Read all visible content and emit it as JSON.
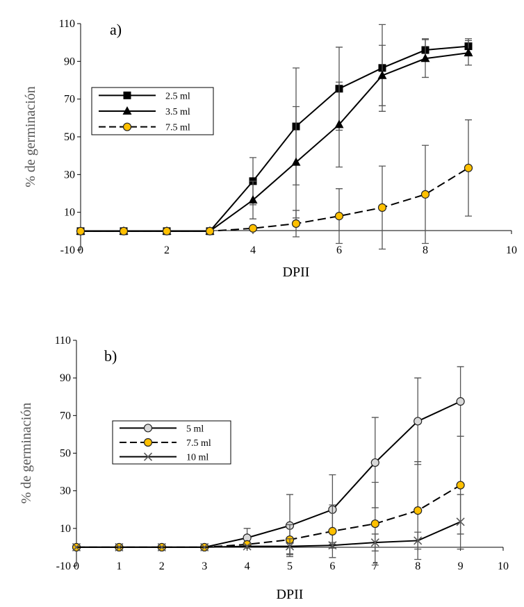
{
  "chart_data": [
    {
      "type": "line",
      "panel_label": "a)",
      "xlabel": "DPII",
      "ylabel": "% de germinación",
      "xlim": [
        0,
        10
      ],
      "ylim": [
        -10,
        110
      ],
      "xticks": [
        "0",
        "2",
        "4",
        "6",
        "8",
        "10"
      ],
      "yticks": [
        "-10",
        "10",
        "30",
        "50",
        "70",
        "90",
        "110"
      ],
      "legend_position": "left-middle",
      "series": [
        {
          "name": "2.5 ml",
          "marker": "square",
          "marker_color": "#000000",
          "line_style": "solid",
          "x": [
            0,
            1,
            2,
            3,
            4,
            5,
            6,
            7,
            8,
            9
          ],
          "y": [
            0,
            0,
            0,
            0,
            26.5,
            55.5,
            75.5,
            86.5,
            96,
            98
          ],
          "err": [
            0,
            0,
            0,
            0,
            12.5,
            31,
            22,
            23,
            6,
            4
          ]
        },
        {
          "name": "3.5 ml",
          "marker": "triangle",
          "marker_color": "#000000",
          "line_style": "solid",
          "x": [
            0,
            1,
            2,
            3,
            4,
            5,
            6,
            7,
            8,
            9
          ],
          "y": [
            0,
            0,
            0,
            0,
            16.5,
            36.5,
            56.5,
            82.5,
            91.5,
            94.5
          ],
          "err": [
            0,
            0,
            0,
            0,
            10,
            29.5,
            22.5,
            16,
            10,
            6.5
          ]
        },
        {
          "name": "7.5 ml",
          "marker": "circle",
          "marker_color": "#ffc000",
          "line_style": "dashed",
          "x": [
            0,
            1,
            2,
            3,
            4,
            5,
            6,
            7,
            8,
            9
          ],
          "y": [
            0,
            0,
            0,
            0,
            1.5,
            4,
            8,
            12.5,
            19.5,
            33.5
          ],
          "err": [
            0,
            0,
            0,
            0,
            1,
            7,
            14.5,
            22,
            26,
            25.5
          ]
        }
      ]
    },
    {
      "type": "line",
      "panel_label": "b)",
      "xlabel": "DPII",
      "ylabel": "% de germinación",
      "xlim": [
        0,
        10
      ],
      "ylim": [
        -10,
        110
      ],
      "xticks": [
        "0",
        "1",
        "2",
        "3",
        "4",
        "5",
        "6",
        "7",
        "8",
        "9",
        "10"
      ],
      "yticks": [
        "-10",
        "10",
        "30",
        "50",
        "70",
        "90",
        "110"
      ],
      "legend_position": "left-middle",
      "series": [
        {
          "name": "5 ml",
          "marker": "circle",
          "marker_color": "#d9d9d9",
          "line_style": "solid",
          "x": [
            0,
            1,
            2,
            3,
            4,
            5,
            6,
            7,
            8,
            9
          ],
          "y": [
            0,
            0,
            0,
            0,
            5,
            11.5,
            20,
            45,
            67,
            77.5
          ],
          "err": [
            0,
            0,
            0,
            0,
            5,
            16.5,
            18.5,
            24,
            23,
            18.5
          ]
        },
        {
          "name": "7.5 ml",
          "marker": "circle",
          "marker_color": "#ffc000",
          "line_style": "dashed",
          "x": [
            0,
            1,
            2,
            3,
            4,
            5,
            6,
            7,
            8,
            9
          ],
          "y": [
            0,
            0,
            0,
            0,
            1.5,
            4,
            8.5,
            12.5,
            19.5,
            33
          ],
          "err": [
            0,
            0,
            0,
            0,
            1,
            8,
            14,
            22,
            26,
            26
          ]
        },
        {
          "name": "10 ml",
          "marker": "x",
          "marker_color": "#595959",
          "line_style": "solid",
          "x": [
            0,
            1,
            2,
            3,
            4,
            5,
            6,
            7,
            8,
            9
          ],
          "y": [
            0,
            0,
            0,
            0,
            0.5,
            0.5,
            1,
            2.5,
            3.5,
            13.5
          ],
          "err": [
            0,
            0,
            0,
            0,
            0.5,
            4,
            1.5,
            4.5,
            4.5,
            14.5
          ]
        }
      ]
    }
  ]
}
